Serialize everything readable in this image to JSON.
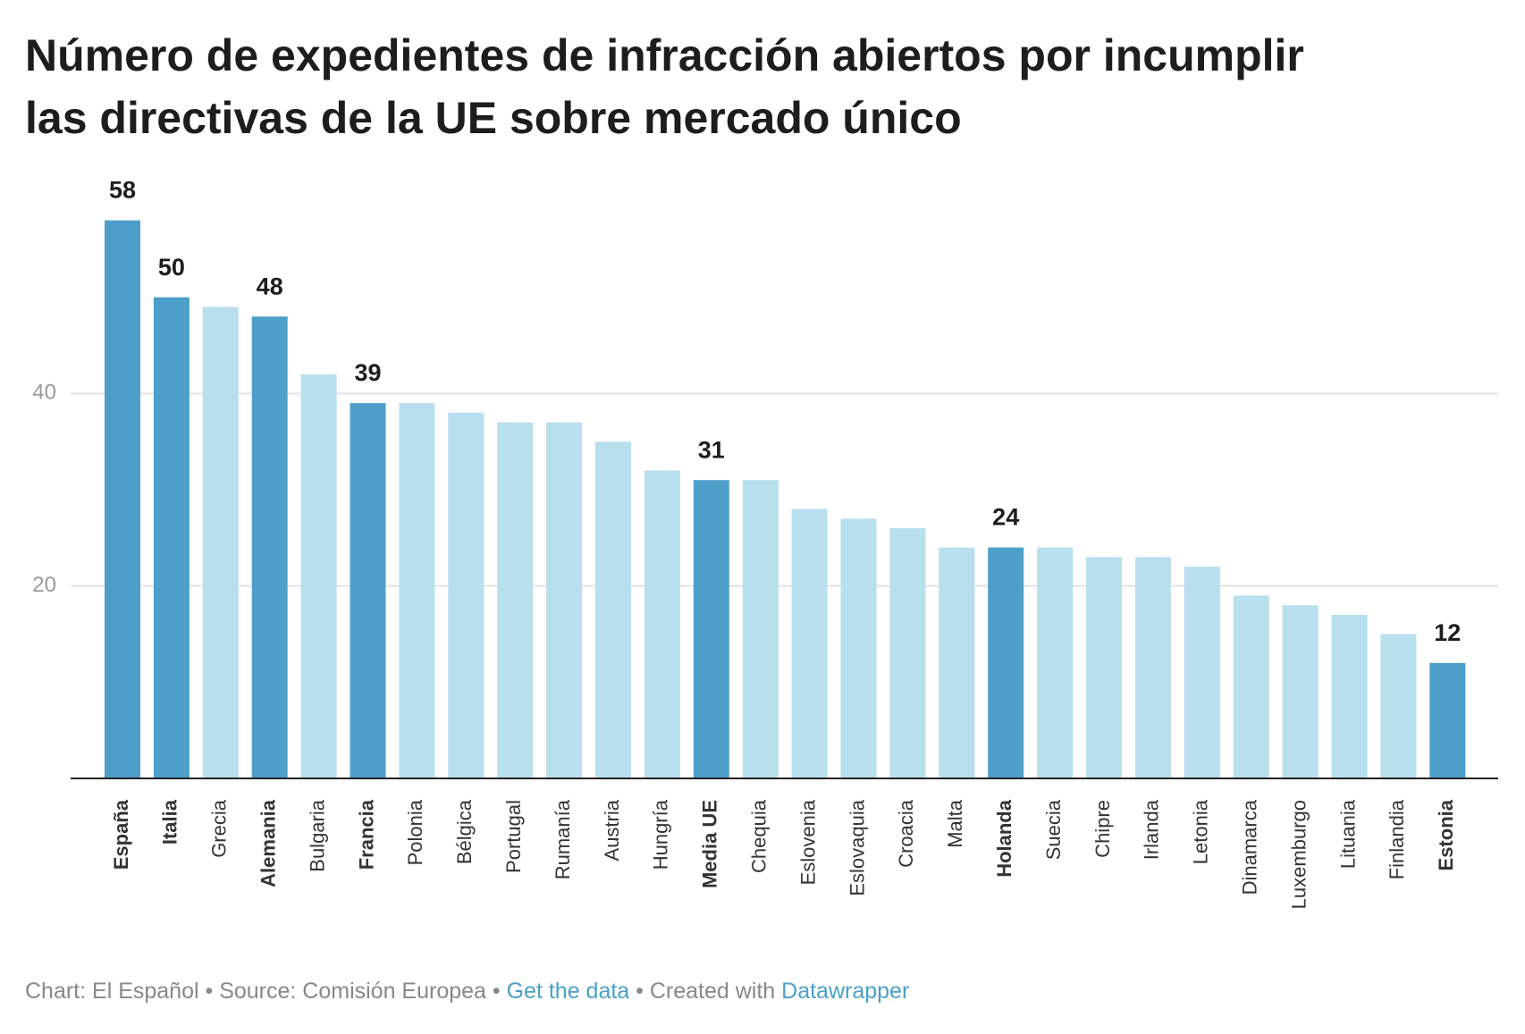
{
  "chart_data": {
    "type": "bar",
    "title": "Número de expedientes de infracción abiertos por incumplir las directivas de la UE sobre mercado único",
    "categories": [
      "España",
      "Italia",
      "Grecia",
      "Alemania",
      "Bulgaria",
      "Francia",
      "Polonia",
      "Bélgica",
      "Portugal",
      "Rumanía",
      "Austria",
      "Hungría",
      "Media UE",
      "Chequia",
      "Eslovenia",
      "Eslovaquia",
      "Croacia",
      "Malta",
      "Holanda",
      "Suecia",
      "Chipre",
      "Irlanda",
      "Letonia",
      "Dinamarca",
      "Luxemburgo",
      "Lituania",
      "Finlandia",
      "Estonia"
    ],
    "values": [
      58,
      50,
      49,
      48,
      42,
      39,
      39,
      38,
      37,
      37,
      35,
      32,
      31,
      31,
      28,
      27,
      26,
      24,
      24,
      24,
      23,
      23,
      22,
      19,
      18,
      17,
      15,
      12
    ],
    "colors": [
      "#4d9fca",
      "#4d9fca",
      "#b8dfee",
      "#4d9fca",
      "#b8dfee",
      "#4d9fca",
      "#b8dfee",
      "#b8dfee",
      "#b8dfee",
      "#b8dfee",
      "#b8dfee",
      "#b8dfee",
      "#4d9fca",
      "#b8dfee",
      "#b8dfee",
      "#b8dfee",
      "#b8dfee",
      "#b8dfee",
      "#4d9fca",
      "#b8dfee",
      "#b8dfee",
      "#b8dfee",
      "#b8dfee",
      "#b8dfee",
      "#b8dfee",
      "#b8dfee",
      "#b8dfee",
      "#4d9fca"
    ],
    "highlight_color": "#4d9fca",
    "ylim": [
      0,
      60
    ],
    "yticks": [
      20,
      40
    ],
    "grid": true,
    "footer": [
      {
        "text": "Chart: El Español • Source: Comisión Europea • ",
        "link": false
      },
      {
        "text": "Get the data",
        "link": true
      },
      {
        "text": " • Created with ",
        "link": false
      },
      {
        "text": "Datawrapper",
        "link": true
      }
    ]
  }
}
